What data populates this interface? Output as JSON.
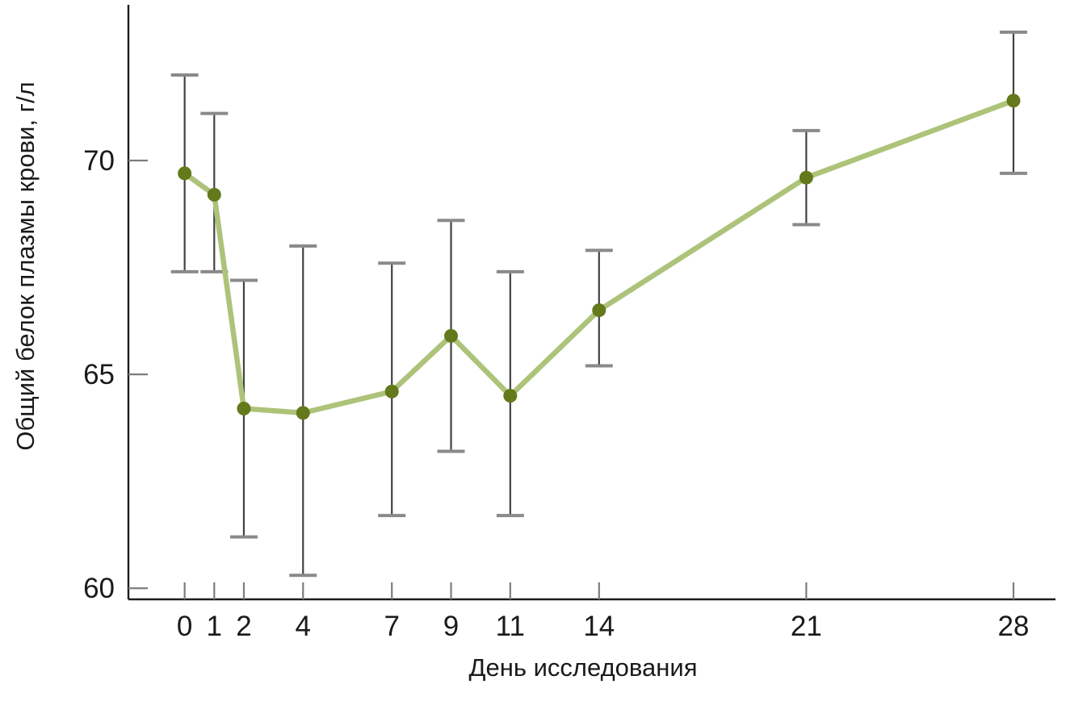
{
  "chart_data": {
    "type": "line",
    "title": "",
    "xlabel": "День исследования",
    "ylabel": "Общий белок плазмы крови, г/л",
    "x": [
      0,
      1,
      2,
      4,
      7,
      9,
      11,
      14,
      21,
      28
    ],
    "x_tick_labels": [
      "0",
      "1",
      "2",
      "4",
      "7",
      "9",
      "11",
      "14",
      "21",
      "28"
    ],
    "y_ticks": [
      60,
      65,
      70
    ],
    "y_tick_labels": [
      "60",
      "65",
      "70"
    ],
    "xlim": [
      -1.9,
      29.42
    ],
    "ylim": [
      59.74,
      73.64
    ],
    "grid": false,
    "legend": "none",
    "error_bars": true,
    "series": [
      {
        "values": [
          69.7,
          69.2,
          64.2,
          64.1,
          64.6,
          65.9,
          64.5,
          66.5,
          69.6,
          71.4
        ],
        "error_lower": [
          67.4,
          67.4,
          61.2,
          60.3,
          61.7,
          63.2,
          61.7,
          65.2,
          68.5,
          69.7
        ],
        "error_upper": [
          72.0,
          71.1,
          67.2,
          68.0,
          67.6,
          68.6,
          67.4,
          67.9,
          70.7,
          73.0
        ]
      }
    ],
    "colors": {
      "line": "#adc379",
      "marker": "#64791c",
      "error_stem": "#424242",
      "error_cap": "#8a8a8a",
      "axis": "#1c1c1c",
      "tick": "#7d7d7d",
      "text": "#1a1a1a"
    }
  }
}
